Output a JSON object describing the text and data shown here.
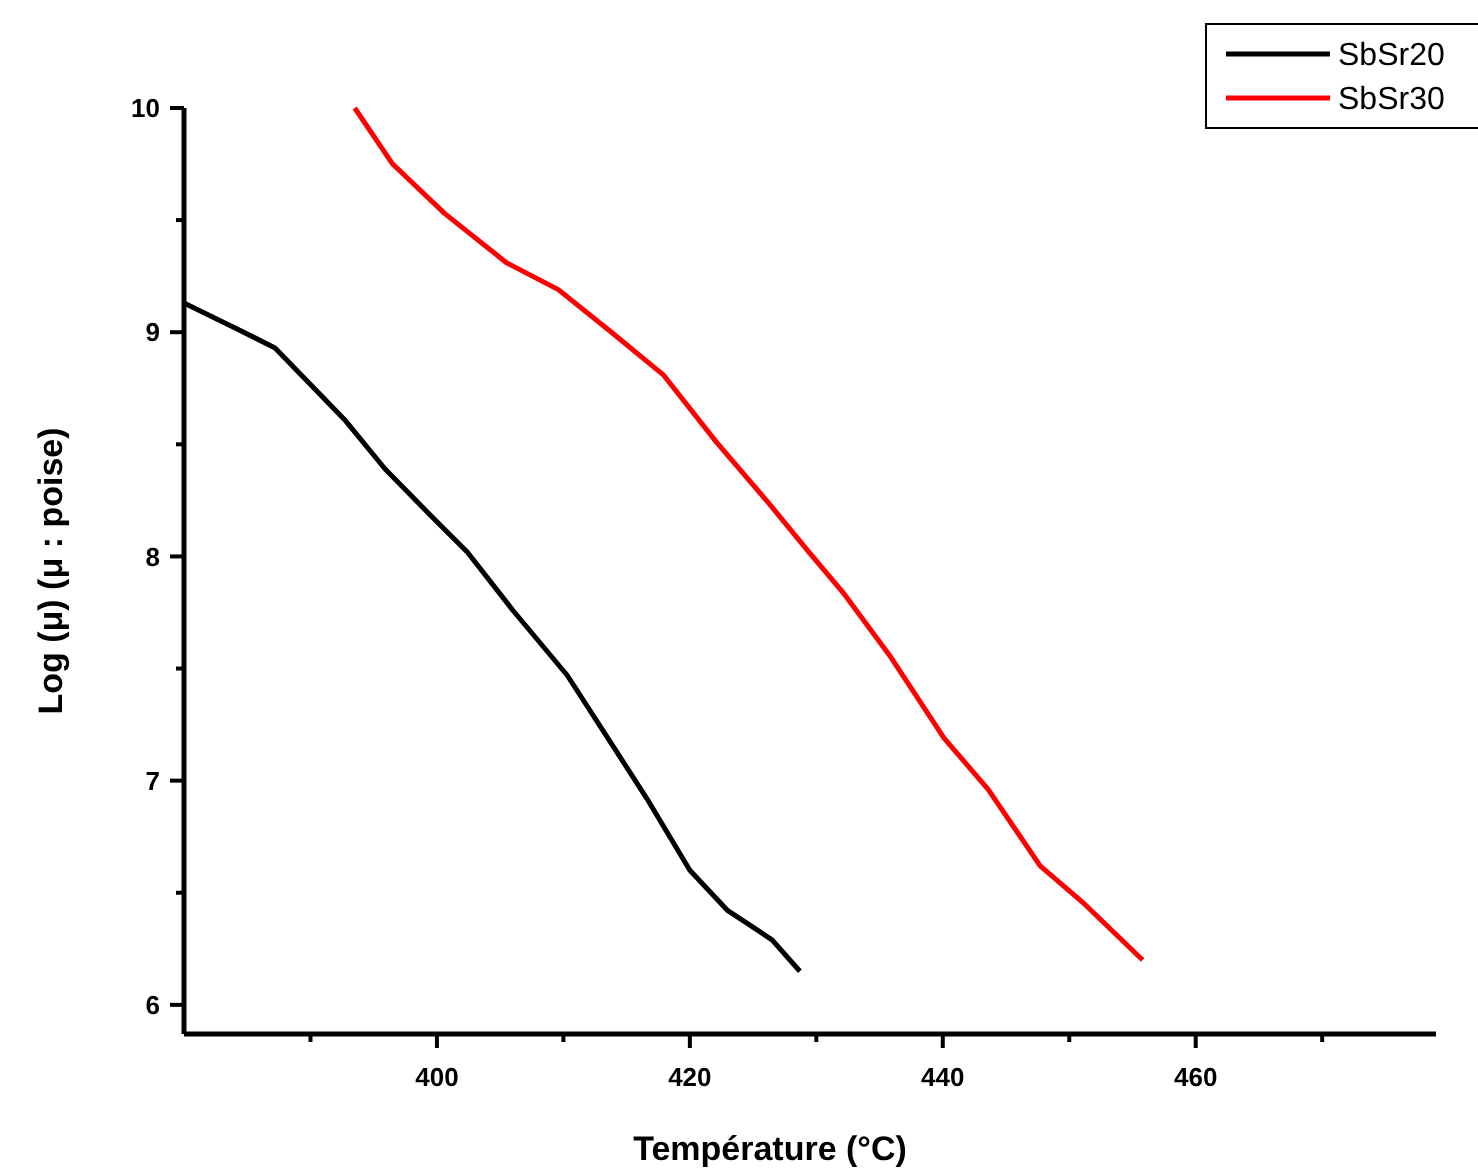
{
  "chart_data": {
    "type": "line",
    "xlabel": "Température (°C)",
    "ylabel": "Log (μ)   (μ : poise)",
    "xlim": [
      380,
      479
    ],
    "ylim": [
      5.87,
      10
    ],
    "xticks": [
      {
        "value": 390,
        "label": null
      },
      400,
      {
        "value": 410,
        "label": null
      },
      420,
      {
        "value": 430,
        "label": null
      },
      440,
      {
        "value": 450,
        "label": null
      },
      460,
      {
        "value": 470,
        "label": null
      }
    ],
    "yticks": [
      6,
      {
        "value": 6.5,
        "label": null
      },
      7,
      {
        "value": 7.5,
        "label": null
      },
      8,
      {
        "value": 8.5,
        "label": null
      },
      9,
      {
        "value": 9.5,
        "label": null
      },
      10
    ],
    "grid": false,
    "legend": "top right",
    "line_style": "solid",
    "marker": "none",
    "series": [
      {
        "name": "SbSr20",
        "color": "#000000",
        "x": [
          380,
          384,
          387.2,
          389.6,
          392.7,
          395.9,
          399.9,
          402.4,
          406,
          410.3,
          413.4,
          416.6,
          420,
          423,
          424.9,
          426.5,
          428.7
        ],
        "values": [
          9.13,
          9.02,
          8.93,
          8.79,
          8.61,
          8.39,
          8.16,
          8.02,
          7.76,
          7.47,
          7.2,
          6.92,
          6.6,
          6.42,
          6.35,
          6.29,
          6.15
        ]
      },
      {
        "name": "SbSr30",
        "color": "#ff0000",
        "x": [
          393.5,
          396.5,
          400.6,
          405.5,
          409.6,
          413.8,
          417.9,
          422.1,
          426.2,
          429.4,
          432.1,
          435.9,
          440.1,
          443.6,
          447.7,
          451.2,
          455.8
        ],
        "values": [
          10.0,
          9.75,
          9.53,
          9.31,
          9.19,
          9.0,
          8.81,
          8.51,
          8.24,
          8.02,
          7.84,
          7.55,
          7.19,
          6.96,
          6.62,
          6.45,
          6.2
        ]
      }
    ]
  }
}
